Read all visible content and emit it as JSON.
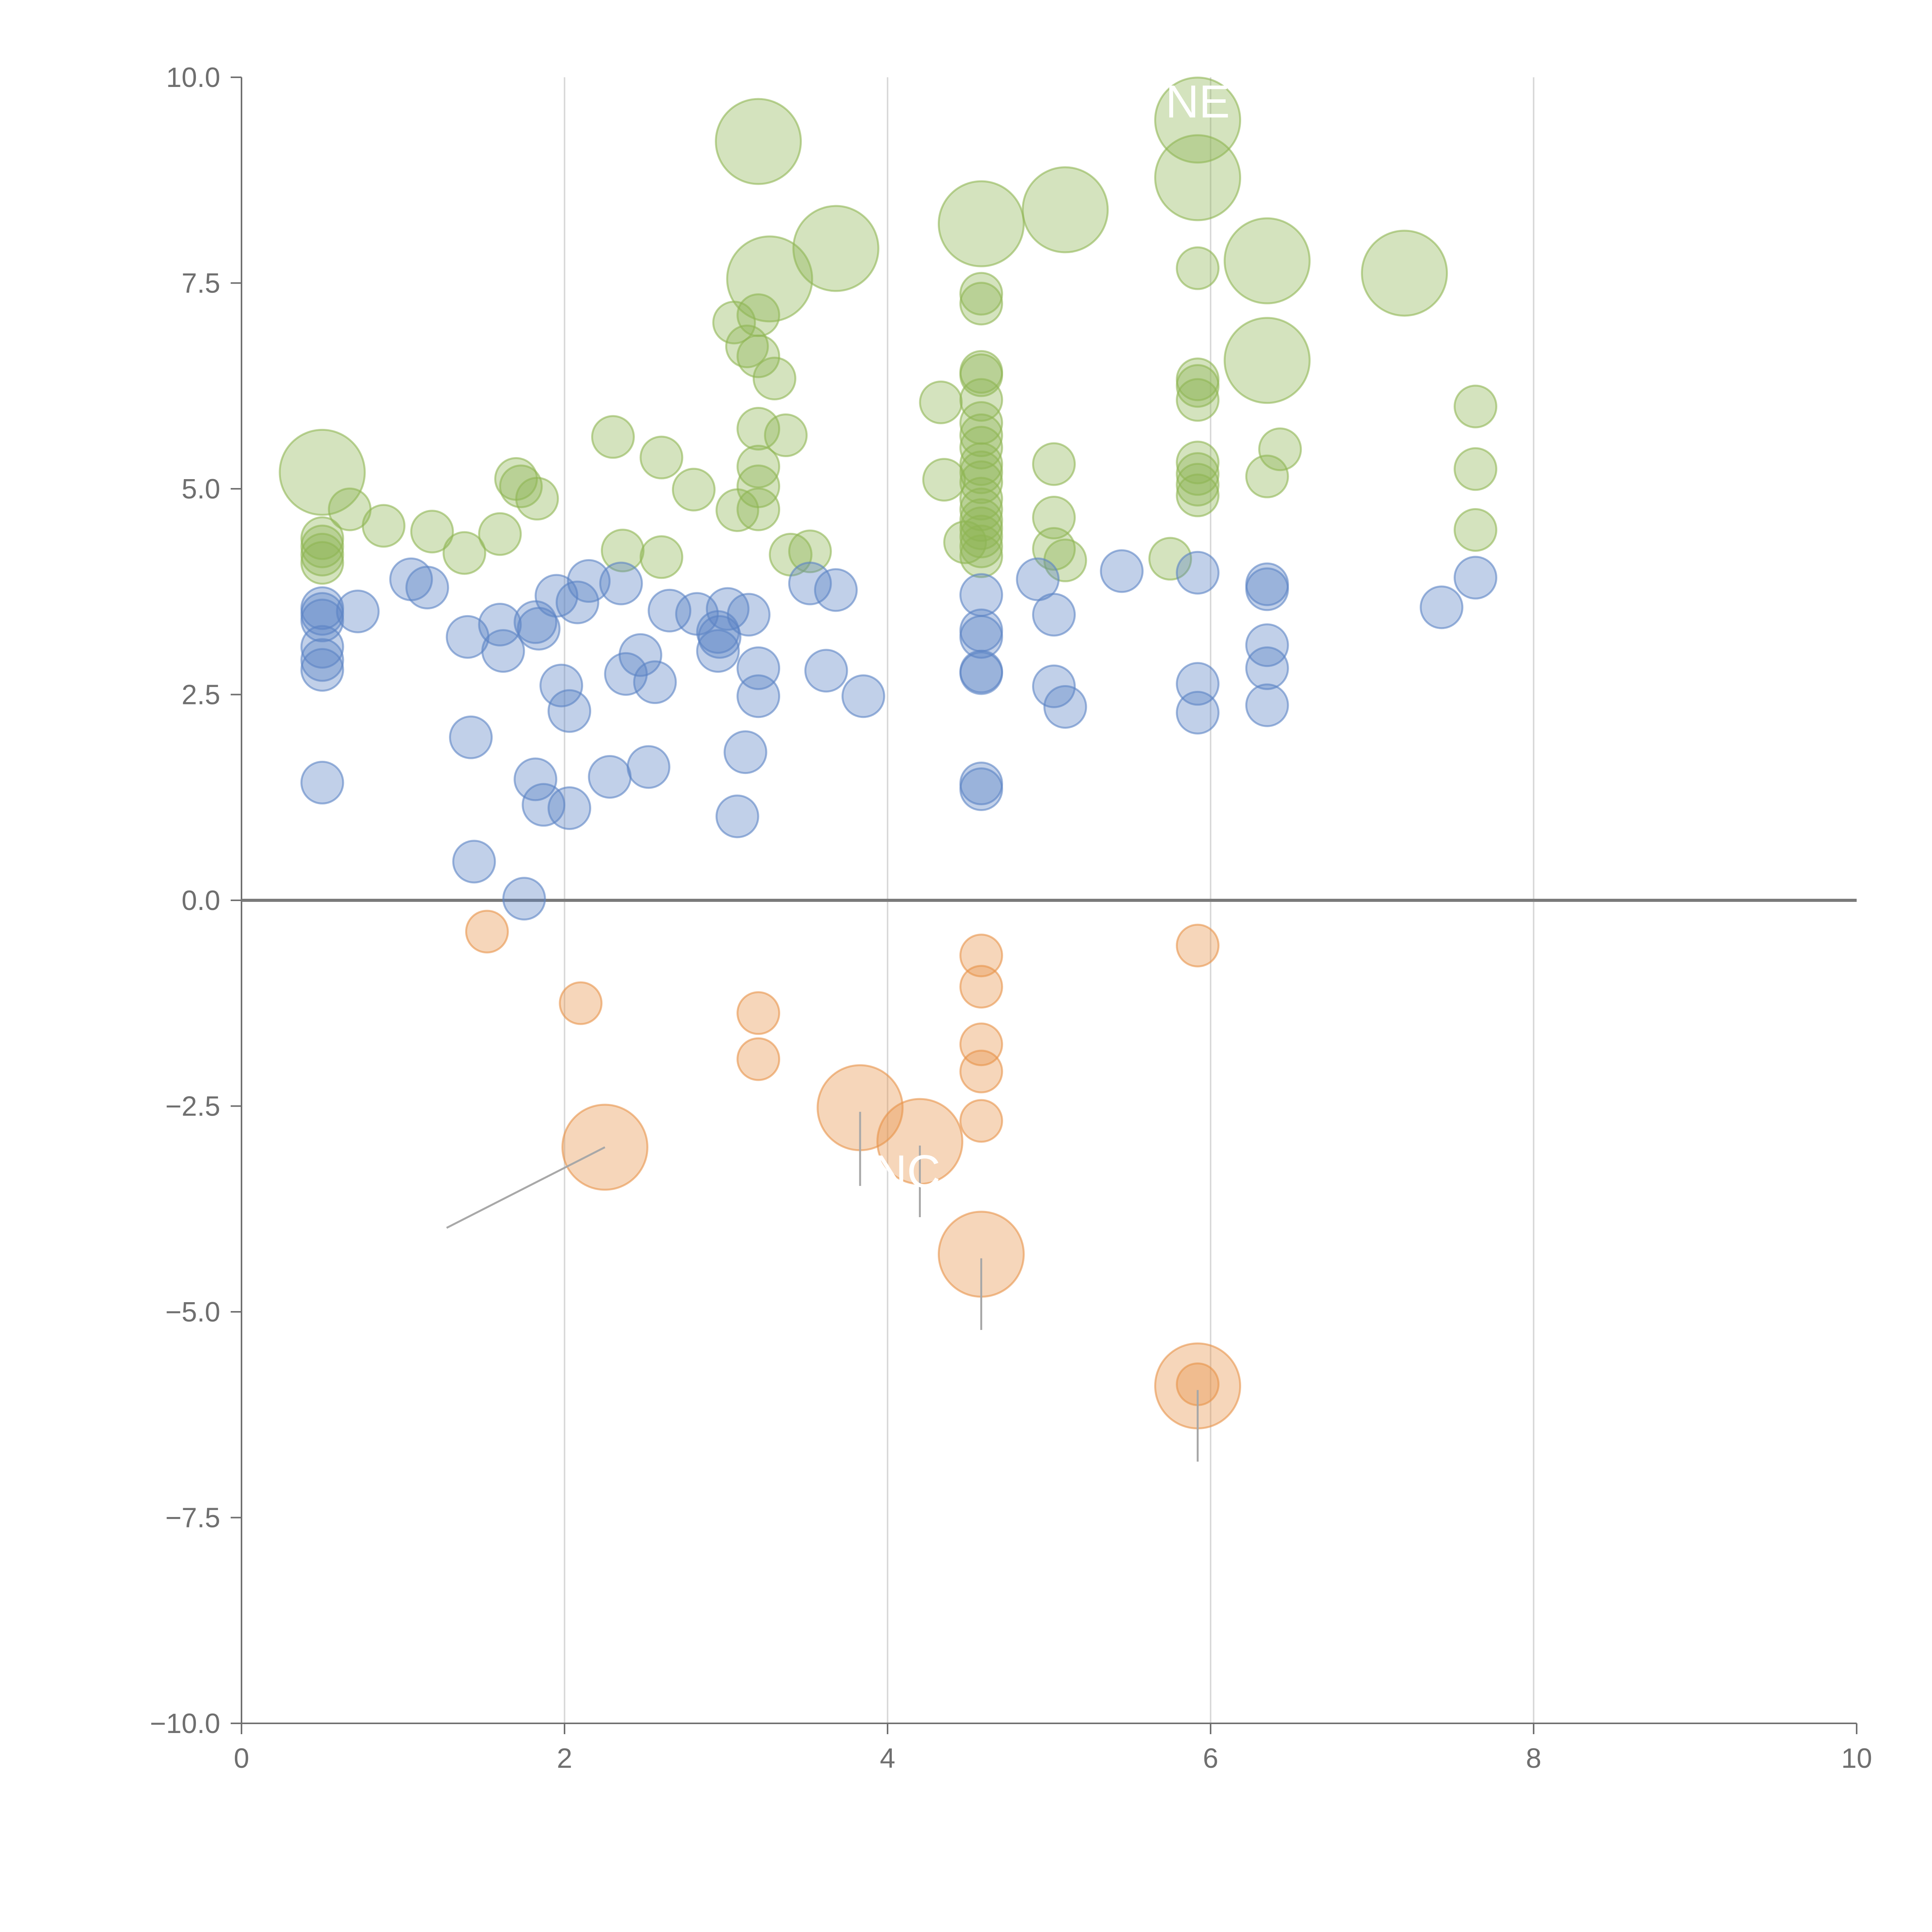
{
  "chart_data": {
    "type": "scatter",
    "title": "",
    "xlabel": "",
    "ylabel": "",
    "xlim": [
      0,
      10
    ],
    "ylim": [
      -10,
      10
    ],
    "x_ticks": [
      0,
      2,
      4,
      6,
      8,
      10
    ],
    "y_ticks": [
      10.0,
      7.5,
      5.0,
      2.5,
      0.0,
      -2.5,
      -5.0,
      -7.5,
      -10.0
    ],
    "x_tick_labels": [
      "0",
      "2",
      "4",
      "6",
      "8",
      "10"
    ],
    "y_tick_labels": [
      "10.0",
      "7.5",
      "5.0",
      "2.5",
      "0.0",
      "−2.5",
      "−5.0",
      "−7.5",
      "−10.0"
    ],
    "vertical_gridlines": [
      2,
      4,
      6,
      8
    ],
    "reference_line_y": 0,
    "colors": {
      "green": "#8fb654",
      "blue": "#5b84c4",
      "orange": "#e8924a",
      "axis": "#6f6f6f",
      "grid": "#d9d9d9",
      "zero_line": "#7a7a7a"
    },
    "series": [
      {
        "name": "green",
        "color": "#8fb654",
        "points": [
          [
            0.5,
            5.2,
            "l"
          ],
          [
            0.67,
            4.75,
            "s"
          ],
          [
            0.88,
            4.55,
            "s"
          ],
          [
            0.5,
            4.4,
            "s"
          ],
          [
            0.5,
            4.3,
            "s"
          ],
          [
            0.5,
            4.2,
            "s"
          ],
          [
            0.5,
            4.1,
            "s"
          ],
          [
            1.18,
            4.48,
            "s"
          ],
          [
            1.38,
            4.22,
            "s"
          ],
          [
            1.6,
            4.45,
            "s"
          ],
          [
            1.7,
            5.12,
            "s"
          ],
          [
            1.73,
            5.03,
            "s"
          ],
          [
            1.83,
            4.88,
            "s"
          ],
          [
            2.3,
            5.63,
            "s"
          ],
          [
            2.36,
            4.25,
            "s"
          ],
          [
            2.6,
            5.38,
            "s"
          ],
          [
            2.6,
            4.17,
            "s"
          ],
          [
            2.8,
            4.99,
            "s"
          ],
          [
            3.05,
            7.02,
            "s"
          ],
          [
            3.13,
            6.73,
            "s"
          ],
          [
            3.2,
            6.61,
            "s"
          ],
          [
            3.2,
            7.11,
            "s"
          ],
          [
            3.3,
            6.34,
            "s"
          ],
          [
            3.2,
            5.73,
            "s"
          ],
          [
            3.2,
            5.27,
            "s"
          ],
          [
            3.2,
            5.03,
            "s"
          ],
          [
            3.07,
            4.74,
            "s"
          ],
          [
            3.2,
            4.75,
            "s"
          ],
          [
            3.37,
            5.65,
            "s"
          ],
          [
            3.4,
            4.2,
            "s"
          ],
          [
            3.52,
            4.24,
            "s"
          ],
          [
            3.2,
            9.22,
            "l"
          ],
          [
            3.27,
            7.55,
            "l"
          ],
          [
            3.68,
            7.92,
            "l"
          ],
          [
            4.33,
            6.05,
            "s"
          ],
          [
            4.35,
            5.11,
            "s"
          ],
          [
            4.48,
            4.35,
            "s"
          ],
          [
            4.58,
            7.37,
            "s"
          ],
          [
            4.58,
            7.25,
            "s"
          ],
          [
            4.58,
            6.42,
            "s"
          ],
          [
            4.58,
            6.38,
            "s"
          ],
          [
            4.58,
            6.08,
            "s"
          ],
          [
            4.58,
            5.8,
            "s"
          ],
          [
            4.58,
            5.65,
            "s"
          ],
          [
            4.58,
            5.5,
            "s"
          ],
          [
            4.58,
            5.3,
            "s"
          ],
          [
            4.58,
            5.2,
            "s"
          ],
          [
            4.58,
            5.08,
            "s"
          ],
          [
            4.58,
            4.88,
            "s"
          ],
          [
            4.58,
            4.75,
            "s"
          ],
          [
            4.58,
            4.62,
            "s"
          ],
          [
            4.58,
            4.52,
            "s"
          ],
          [
            4.58,
            4.42,
            "s"
          ],
          [
            4.58,
            4.3,
            "s"
          ],
          [
            4.58,
            4.18,
            "s"
          ],
          [
            4.58,
            8.22,
            "l"
          ],
          [
            5.1,
            8.39,
            "l"
          ],
          [
            5.03,
            5.3,
            "s"
          ],
          [
            5.03,
            4.65,
            "s"
          ],
          [
            5.03,
            4.27,
            "s"
          ],
          [
            5.1,
            4.13,
            "s"
          ],
          [
            5.75,
            4.15,
            "s"
          ],
          [
            5.92,
            7.68,
            "s"
          ],
          [
            5.92,
            6.33,
            "s"
          ],
          [
            5.92,
            6.25,
            "s"
          ],
          [
            5.92,
            6.08,
            "s"
          ],
          [
            5.92,
            5.32,
            "s"
          ],
          [
            5.92,
            5.18,
            "s"
          ],
          [
            5.92,
            5.05,
            "s"
          ],
          [
            5.92,
            4.92,
            "s"
          ],
          [
            5.92,
            9.48,
            "l"
          ],
          [
            5.92,
            8.78,
            "l"
          ],
          [
            6.35,
            7.77,
            "l"
          ],
          [
            6.35,
            6.56,
            "l"
          ],
          [
            6.35,
            5.15,
            "s"
          ],
          [
            6.43,
            5.48,
            "s"
          ],
          [
            7.2,
            7.62,
            "l"
          ],
          [
            7.64,
            6.0,
            "s"
          ],
          [
            7.64,
            5.24,
            "s"
          ],
          [
            7.64,
            4.5,
            "s"
          ]
        ]
      },
      {
        "name": "blue",
        "color": "#5b84c4",
        "points": [
          [
            0.5,
            3.55,
            "s"
          ],
          [
            0.5,
            3.48,
            "s"
          ],
          [
            0.5,
            3.4,
            "s"
          ],
          [
            0.5,
            3.08,
            "s"
          ],
          [
            0.5,
            2.92,
            "s"
          ],
          [
            0.5,
            2.8,
            "s"
          ],
          [
            0.5,
            1.43,
            "s"
          ],
          [
            0.72,
            3.51,
            "s"
          ],
          [
            1.05,
            3.9,
            "s"
          ],
          [
            1.15,
            3.8,
            "s"
          ],
          [
            1.4,
            3.2,
            "s"
          ],
          [
            1.42,
            1.98,
            "s"
          ],
          [
            1.44,
            0.47,
            "s"
          ],
          [
            1.6,
            3.35,
            "s"
          ],
          [
            1.62,
            3.03,
            "s"
          ],
          [
            1.75,
            0.02,
            "s"
          ],
          [
            1.82,
            3.38,
            "s"
          ],
          [
            1.84,
            3.3,
            "s"
          ],
          [
            1.82,
            1.47,
            "s"
          ],
          [
            1.87,
            1.16,
            "s"
          ],
          [
            1.95,
            3.7,
            "s"
          ],
          [
            1.98,
            2.61,
            "s"
          ],
          [
            2.03,
            2.3,
            "s"
          ],
          [
            2.03,
            1.12,
            "s"
          ],
          [
            2.08,
            3.62,
            "s"
          ],
          [
            2.15,
            3.88,
            "s"
          ],
          [
            2.28,
            1.5,
            "s"
          ],
          [
            2.35,
            3.85,
            "s"
          ],
          [
            2.38,
            2.75,
            "s"
          ],
          [
            2.47,
            2.98,
            "s"
          ],
          [
            2.52,
            1.62,
            "s"
          ],
          [
            2.56,
            2.65,
            "s"
          ],
          [
            2.65,
            3.52,
            "s"
          ],
          [
            2.82,
            3.48,
            "s"
          ],
          [
            2.95,
            3.26,
            "s"
          ],
          [
            2.96,
            3.2,
            "s"
          ],
          [
            2.95,
            3.03,
            "s"
          ],
          [
            3.01,
            3.54,
            "s"
          ],
          [
            3.07,
            1.02,
            "s"
          ],
          [
            3.12,
            1.8,
            "s"
          ],
          [
            3.14,
            3.47,
            "s"
          ],
          [
            3.2,
            2.82,
            "s"
          ],
          [
            3.2,
            2.48,
            "s"
          ],
          [
            3.52,
            3.85,
            "s"
          ],
          [
            3.62,
            2.79,
            "s"
          ],
          [
            3.68,
            3.77,
            "s"
          ],
          [
            3.85,
            2.48,
            "s"
          ],
          [
            4.58,
            3.71,
            "s"
          ],
          [
            4.58,
            3.28,
            "s"
          ],
          [
            4.58,
            3.2,
            "s"
          ],
          [
            4.58,
            2.78,
            "s"
          ],
          [
            4.58,
            2.76,
            "s"
          ],
          [
            4.58,
            1.42,
            "s"
          ],
          [
            4.58,
            1.35,
            "s"
          ],
          [
            4.93,
            3.9,
            "s"
          ],
          [
            5.03,
            3.47,
            "s"
          ],
          [
            5.03,
            2.6,
            "s"
          ],
          [
            5.1,
            2.35,
            "s"
          ],
          [
            5.45,
            4.0,
            "s"
          ],
          [
            5.92,
            3.98,
            "s"
          ],
          [
            5.92,
            2.63,
            "s"
          ],
          [
            5.92,
            2.28,
            "s"
          ],
          [
            6.35,
            3.84,
            "s"
          ],
          [
            6.35,
            3.78,
            "s"
          ],
          [
            6.35,
            3.1,
            "s"
          ],
          [
            6.35,
            2.82,
            "s"
          ],
          [
            6.35,
            2.37,
            "s"
          ],
          [
            7.43,
            3.56,
            "s"
          ],
          [
            7.64,
            3.92,
            "s"
          ]
        ]
      },
      {
        "name": "orange",
        "color": "#e8924a",
        "points": [
          [
            1.52,
            -0.38,
            "s"
          ],
          [
            2.1,
            -1.25,
            "s"
          ],
          [
            3.2,
            -1.37,
            "s"
          ],
          [
            3.2,
            -1.93,
            "s"
          ],
          [
            4.58,
            -0.67,
            "s"
          ],
          [
            4.58,
            -1.05,
            "s"
          ],
          [
            4.58,
            -1.75,
            "s"
          ],
          [
            4.58,
            -2.08,
            "s"
          ],
          [
            4.58,
            -2.68,
            "s"
          ],
          [
            5.92,
            -0.55,
            "s"
          ],
          [
            5.92,
            -5.88,
            "s"
          ],
          [
            2.25,
            -3.0,
            "l"
          ],
          [
            3.83,
            -2.52,
            "l"
          ],
          [
            4.2,
            -2.93,
            "l"
          ],
          [
            4.58,
            -4.3,
            "l"
          ],
          [
            5.92,
            -5.9,
            "l"
          ]
        ]
      }
    ],
    "annotations": [
      {
        "text": "NE",
        "x": 5.92,
        "y": 9.7
      },
      {
        "text": "NC",
        "x": 4.12,
        "y": -3.3
      }
    ]
  }
}
